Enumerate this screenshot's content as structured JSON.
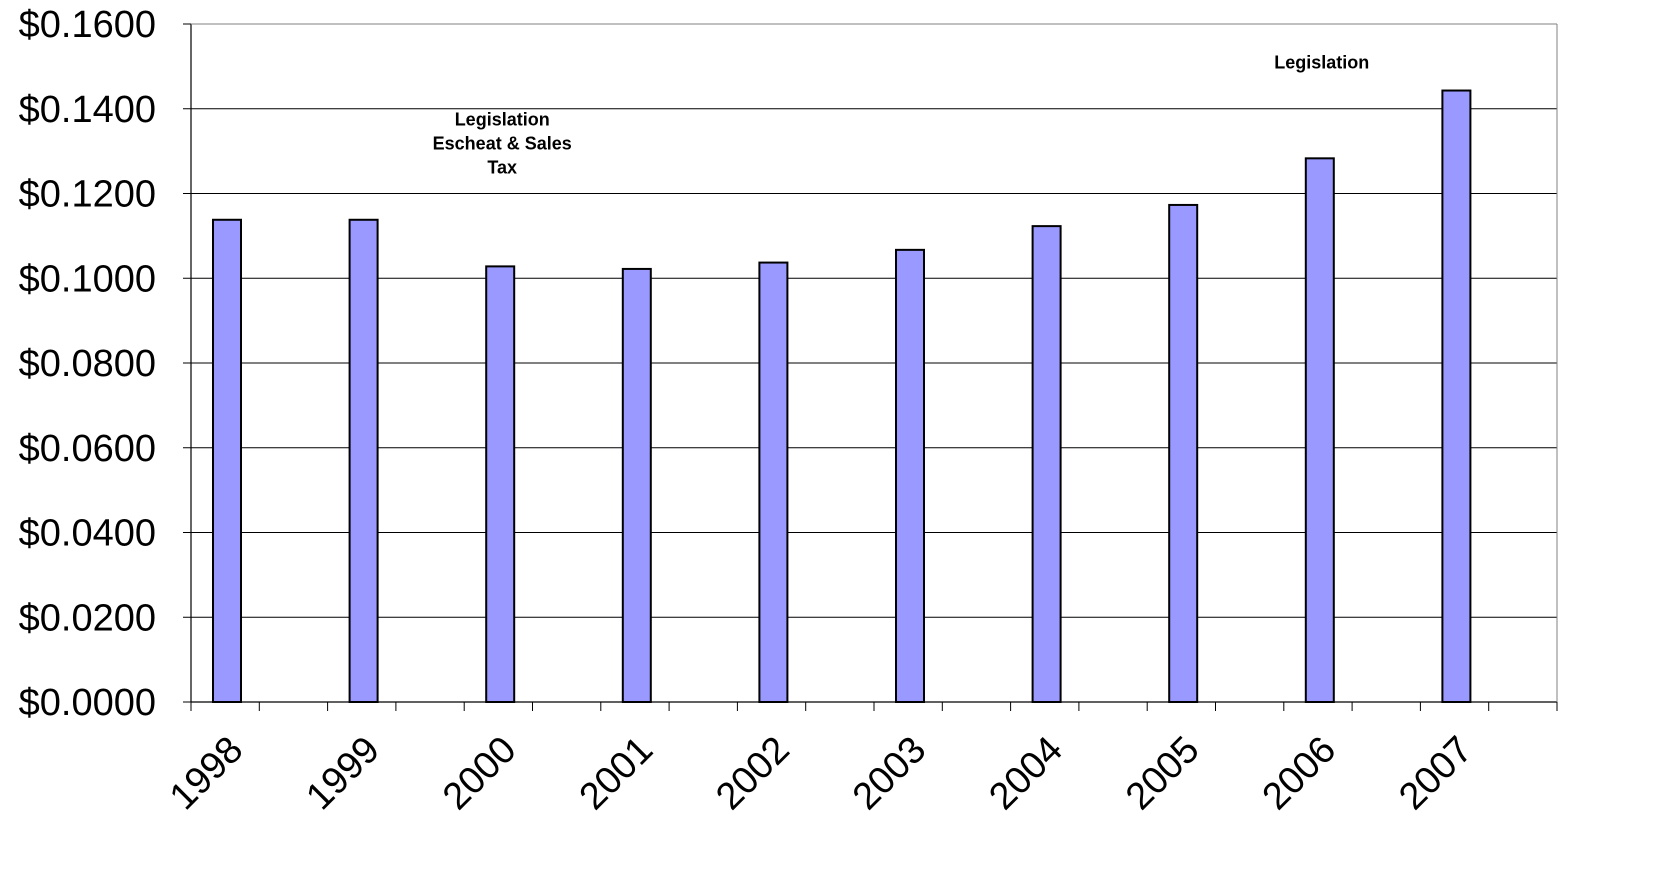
{
  "chart_data": {
    "type": "bar",
    "categories": [
      "1998",
      "1999",
      "2000",
      "2001",
      "2002",
      "2003",
      "2004",
      "2005",
      "2006",
      "2007"
    ],
    "values": [
      0.1138,
      0.1138,
      0.1028,
      0.1022,
      0.1037,
      0.1067,
      0.1123,
      0.1173,
      0.1283,
      0.1443
    ],
    "ylim": [
      0,
      0.16
    ],
    "yticks": [
      0,
      0.02,
      0.04,
      0.06,
      0.08,
      0.1,
      0.12,
      0.14,
      0.16
    ],
    "ytick_labels": [
      "$0.0000",
      "$0.0200",
      "$0.0400",
      "$0.0600",
      "$0.0800",
      "$0.1000",
      "$0.1200",
      "$0.1400",
      "$0.1600"
    ],
    "grid": true,
    "legend": "none",
    "bar_color": "#9999FF",
    "bar_edge_color": "#000000",
    "annotations": [
      {
        "category": "2000",
        "value": 0.136,
        "lines": [
          "Legislation",
          "Escheat & Sales",
          "Tax"
        ]
      },
      {
        "category": "2006",
        "value": 0.1495,
        "lines": [
          "Legislation"
        ]
      }
    ]
  }
}
